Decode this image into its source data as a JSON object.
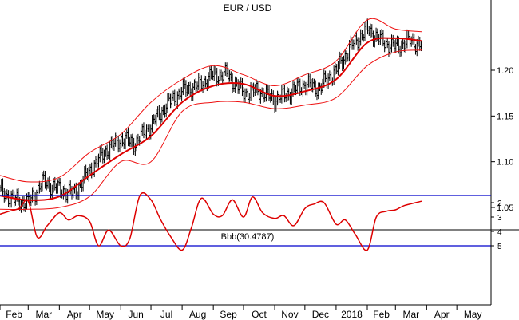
{
  "colors": {
    "background": "#ffffff",
    "price_bar": "#000000",
    "moving_average": "#dd0000",
    "bollinger_band": "#ee1111",
    "indicator_line": "#dd0000",
    "reference_line": "#0000cc",
    "axis": "#000000",
    "separator": "#000000"
  },
  "chart_data": [
    {
      "type": "line",
      "title": "EUR / USD",
      "x_tick_labels": [
        "Feb",
        "Mar",
        "Apr",
        "May",
        "Jun",
        "Jul",
        "Aug",
        "Sep",
        "Oct",
        "Nov",
        "Dec",
        "2018",
        "Feb",
        "Mar",
        "Apr",
        "May"
      ],
      "x_range": [
        "2017-02-01",
        "2018-06-04"
      ],
      "y_ticks": [
        1.05,
        1.1,
        1.15,
        1.2
      ],
      "y_tick_labels": [
        "1.05",
        "1.10",
        "1.15",
        "1.20"
      ],
      "ylim": [
        1.028,
        1.267
      ],
      "y_axis_side": "right",
      "grid": false,
      "series": [
        {
          "kind": "ohlc-bars",
          "dates": [
            "2017-02-01",
            "2017-02-15",
            "2017-03-01",
            "2017-03-15",
            "2017-04-01",
            "2017-04-15",
            "2017-05-01",
            "2017-05-15",
            "2017-06-01",
            "2017-06-15",
            "2017-07-01",
            "2017-07-15",
            "2017-08-01",
            "2017-08-15",
            "2017-09-01",
            "2017-09-15",
            "2017-10-01",
            "2017-10-15",
            "2017-11-01",
            "2017-11-15",
            "2017-12-01",
            "2017-12-15",
            "2018-01-01",
            "2018-01-15",
            "2018-02-01",
            "2018-02-15",
            "2018-03-01",
            "2018-03-15",
            "2018-03-27"
          ],
          "close": [
            1.068,
            1.058,
            1.055,
            1.078,
            1.07,
            1.065,
            1.09,
            1.11,
            1.125,
            1.12,
            1.14,
            1.16,
            1.178,
            1.182,
            1.195,
            1.195,
            1.175,
            1.178,
            1.168,
            1.175,
            1.185,
            1.18,
            1.2,
            1.225,
            1.245,
            1.232,
            1.225,
            1.232,
            1.228
          ]
        },
        {
          "kind": "moving-average",
          "dates": [
            "2017-02-01",
            "2017-03-01",
            "2017-04-01",
            "2017-05-01",
            "2017-06-01",
            "2017-07-01",
            "2017-08-01",
            "2017-09-01",
            "2017-10-01",
            "2017-11-01",
            "2017-12-01",
            "2018-01-01",
            "2018-02-01",
            "2018-03-01",
            "2018-03-27"
          ],
          "values": [
            1.063,
            1.058,
            1.062,
            1.085,
            1.108,
            1.128,
            1.165,
            1.183,
            1.185,
            1.172,
            1.177,
            1.19,
            1.23,
            1.235,
            1.232
          ]
        },
        {
          "kind": "upper-band",
          "dates": [
            "2017-02-01",
            "2017-03-01",
            "2017-04-01",
            "2017-05-01",
            "2017-06-01",
            "2017-07-01",
            "2017-08-01",
            "2017-09-01",
            "2017-10-01",
            "2017-11-01",
            "2017-12-01",
            "2018-01-01",
            "2018-02-01",
            "2018-03-01",
            "2018-03-27"
          ],
          "values": [
            1.085,
            1.078,
            1.083,
            1.11,
            1.13,
            1.165,
            1.19,
            1.205,
            1.195,
            1.183,
            1.195,
            1.21,
            1.255,
            1.245,
            1.242
          ]
        },
        {
          "kind": "lower-band",
          "dates": [
            "2017-02-01",
            "2017-03-01",
            "2017-04-01",
            "2017-05-01",
            "2017-06-01",
            "2017-07-01",
            "2017-08-01",
            "2017-09-01",
            "2017-10-01",
            "2017-11-01",
            "2017-12-01",
            "2018-01-01",
            "2018-02-01",
            "2018-03-01",
            "2018-03-27"
          ],
          "values": [
            1.048,
            1.048,
            1.05,
            1.062,
            1.1,
            1.1,
            1.155,
            1.165,
            1.165,
            1.158,
            1.162,
            1.17,
            1.205,
            1.22,
            1.222
          ]
        }
      ]
    },
    {
      "type": "line",
      "title": "Bbb(30.4787)",
      "x_tick_labels": [
        "Feb",
        "Mar",
        "Apr",
        "May",
        "Jun",
        "Jul",
        "Aug",
        "Sep",
        "Oct",
        "Nov",
        "Dec",
        "2018",
        "Feb",
        "Mar",
        "Apr",
        "May"
      ],
      "x_range": [
        "2017-02-01",
        "2018-06-04"
      ],
      "y_ticks": [
        2,
        3,
        4,
        5
      ],
      "y_tick_labels": [
        "2",
        "3",
        "4",
        "5"
      ],
      "ylim": [
        1.2,
        5.9
      ],
      "y_axis_side": "right",
      "reference_lines": [
        5.0,
        1.5
      ],
      "grid": false,
      "series": [
        {
          "kind": "indicator",
          "dates": [
            "2017-02-01",
            "2017-02-10",
            "2017-02-20",
            "2017-03-01",
            "2017-03-10",
            "2017-03-20",
            "2017-04-01",
            "2017-04-10",
            "2017-04-20",
            "2017-05-01",
            "2017-05-10",
            "2017-05-20",
            "2017-06-01",
            "2017-06-10",
            "2017-06-20",
            "2017-07-01",
            "2017-07-10",
            "2017-07-20",
            "2017-08-01",
            "2017-08-10",
            "2017-08-20",
            "2017-09-01",
            "2017-09-10",
            "2017-09-20",
            "2017-10-01",
            "2017-10-10",
            "2017-10-20",
            "2017-11-01",
            "2017-11-10",
            "2017-11-20",
            "2017-12-01",
            "2017-12-10",
            "2017-12-20",
            "2018-01-01",
            "2018-01-10",
            "2018-01-20",
            "2018-02-01",
            "2018-02-10",
            "2018-02-20",
            "2018-03-01",
            "2018-03-10",
            "2018-03-27"
          ],
          "values": [
            2.8,
            2.6,
            2.4,
            1.9,
            4.4,
            3.6,
            2.7,
            3.2,
            2.9,
            3.3,
            5.0,
            3.9,
            5.0,
            4.5,
            1.5,
            1.8,
            3.1,
            4.3,
            5.3,
            3.8,
            1.7,
            2.8,
            2.9,
            1.8,
            3.0,
            1.6,
            2.7,
            3.1,
            2.9,
            3.6,
            2.4,
            2.1,
            2.0,
            3.5,
            3.2,
            4.2,
            5.3,
            3.0,
            2.6,
            2.5,
            2.2,
            1.9
          ]
        }
      ]
    }
  ]
}
